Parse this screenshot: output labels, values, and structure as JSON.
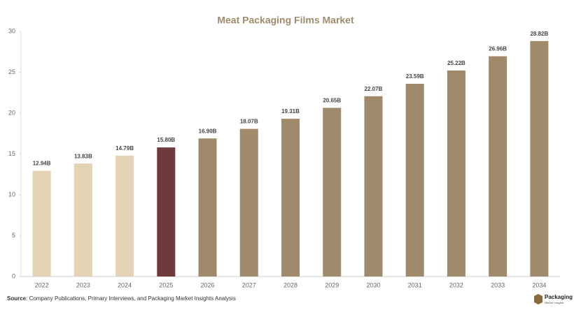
{
  "chart_data": {
    "type": "bar",
    "title": "Meat Packaging Films Market",
    "categories": [
      "2022",
      "2023",
      "2024",
      "2025",
      "2026",
      "2027",
      "2028",
      "2029",
      "2030",
      "2031",
      "2032",
      "2033",
      "2034"
    ],
    "values": [
      12.94,
      13.83,
      14.79,
      15.8,
      16.9,
      18.07,
      19.31,
      20.65,
      22.07,
      23.59,
      25.22,
      26.96,
      28.82
    ],
    "value_labels": [
      "12.94B",
      "13.83B",
      "14.79B",
      "15.80B",
      "16.90B",
      "18.07B",
      "19.31B",
      "20.65B",
      "22.07B",
      "23.59B",
      "25.22B",
      "26.96B",
      "28.82B"
    ],
    "colors": [
      "#e3d2b4",
      "#e3d2b4",
      "#e3d2b4",
      "#6e3a3a",
      "#a08a6c",
      "#a08a6c",
      "#a08a6c",
      "#a08a6c",
      "#a08a6c",
      "#a08a6c",
      "#a08a6c",
      "#a08a6c",
      "#a08a6c"
    ],
    "ylim": [
      0,
      30
    ],
    "yticks": [
      0,
      5,
      10,
      15,
      20,
      25,
      30
    ],
    "grid": false
  },
  "source_label": "Source",
  "source_text": ": Company Publications, Primary Interviews, and Packaging Market Insights Analysis",
  "logo": {
    "name": "Packaging",
    "tagline": "Market Insights"
  }
}
